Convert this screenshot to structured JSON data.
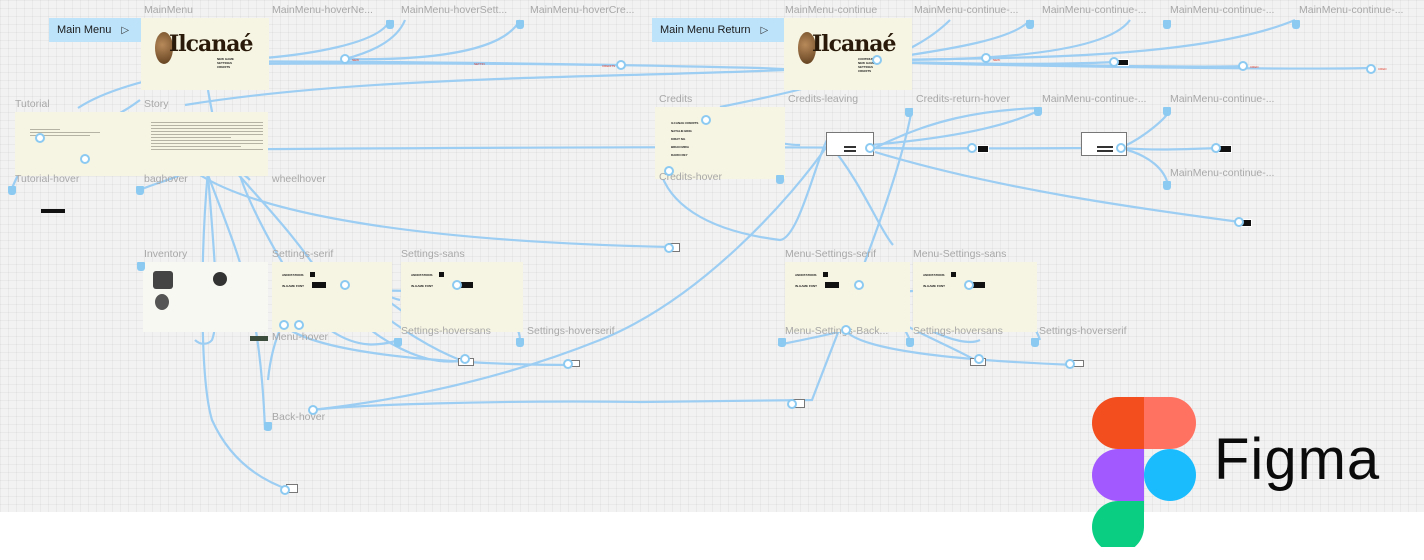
{
  "flows": {
    "main_menu": "Main Menu",
    "main_menu_return": "Main Menu Return"
  },
  "frames": {
    "mainmenu": "MainMenu",
    "mainmenu_hover_new": "MainMenu-hoverNe...",
    "mainmenu_hover_settings": "MainMenu-hoverSett...",
    "mainmenu_hover_credits": "MainMenu-hoverCre...",
    "mainmenu_continue": "MainMenu-continue",
    "mainmenu_continue_2": "MainMenu-continue-...",
    "mainmenu_continue_3": "MainMenu-continue-...",
    "mainmenu_continue_4": "MainMenu-continue-...",
    "mainmenu_continue_5": "MainMenu-continue-...",
    "tutorial": "Tutorial",
    "story": "Story",
    "credits": "Credits",
    "credits_leaving": "Credits-leaving",
    "credits_return_hover": "Credits-return-hover",
    "mainmenu_continue_6": "MainMenu-continue-...",
    "mainmenu_continue_7": "MainMenu-continue-...",
    "mainmenu_continue_8": "MainMenu-continue-...",
    "tutorial_hover": "Tutorial-hover",
    "bag_hover": "baghover",
    "wheel_hover": "wheelhover",
    "credits_hover": "Credits-hover",
    "inventory": "Inventory",
    "settings_serif": "Settings-serif",
    "settings_sans": "Settings-sans",
    "menu_settings_serif": "Menu-Settings-serif",
    "menu_settings_sans": "Menu-Settings-sans",
    "settings_hoversans": "Settings-hoversans",
    "settings_hoverserif": "Settings-hoverserif",
    "menu_hover": "Menu-hover",
    "menu_settings_back": "Menu-Settings-Back...",
    "menu_settings_hoversans": "Settings-hoversans",
    "menu_settings_hoverserif": "Settings-hoverserif",
    "back_hover": "Back-hover"
  },
  "figma": {
    "wordmark": "Figma"
  },
  "colors": {
    "canvas": "#f2f2f2",
    "frame": "#f6f4e2",
    "connector": "#9ccdf3",
    "flow_start": "#bde3fb",
    "figma_red": "#f24e1e",
    "figma_coral": "#ff7262",
    "figma_purple": "#a259ff",
    "figma_blue": "#1abcfe",
    "figma_green": "#0acf83"
  }
}
